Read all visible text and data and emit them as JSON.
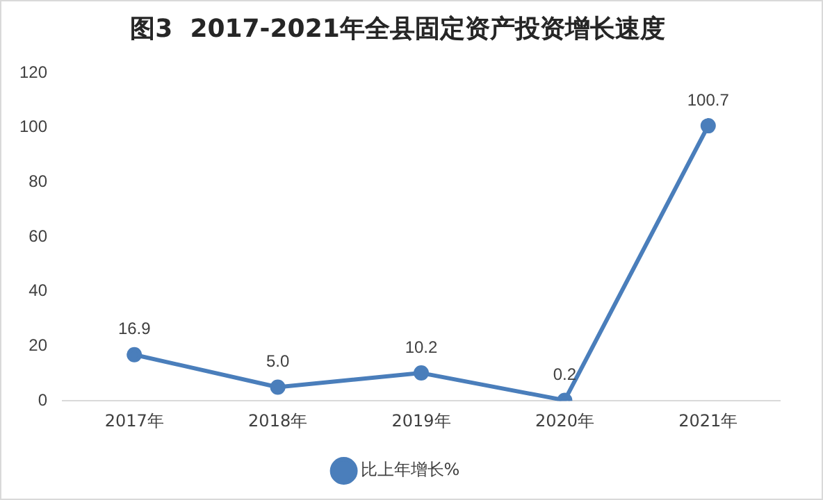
{
  "chart_data": {
    "type": "line",
    "title": "图3  2017-2021年全县固定资产投资增长速度",
    "categories": [
      "2017年",
      "2018年",
      "2019年",
      "2020年",
      "2021年"
    ],
    "series": [
      {
        "name": "比上年增长%",
        "color": "#4a7ebb",
        "values": [
          16.9,
          5.0,
          10.2,
          0.2,
          100.7
        ]
      }
    ],
    "value_labels": [
      "16.9",
      "5.0",
      "10.2",
      "0.2",
      "100.7"
    ],
    "ylim": [
      0,
      120
    ],
    "yticks": [
      0,
      20,
      40,
      60,
      80,
      100,
      120
    ],
    "grid": false,
    "legend": "bottom",
    "marker": "circle",
    "line_style": "solid"
  }
}
